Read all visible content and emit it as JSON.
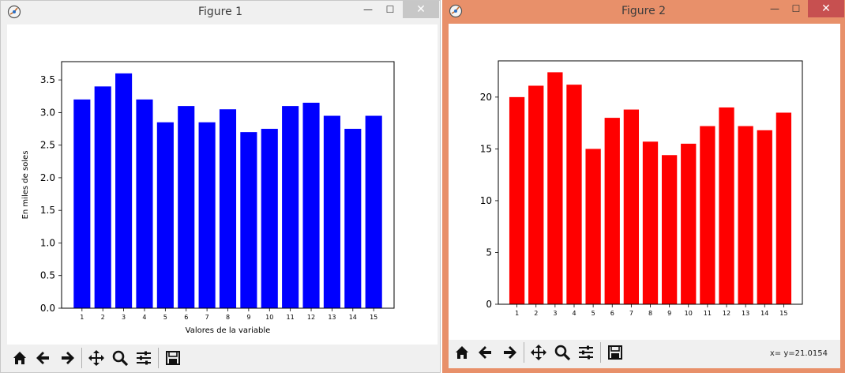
{
  "windows": [
    {
      "title": "Figure 1",
      "coords_text": "",
      "controls": {
        "minimize": "—",
        "maximize": "☐",
        "close": "✕"
      },
      "toolbar": [
        "home-icon",
        "back-icon",
        "forward-icon",
        "pan-icon",
        "zoom-icon",
        "configure-icon",
        "save-icon"
      ]
    },
    {
      "title": "Figure 2",
      "coords_text": "x= y=21.0154",
      "controls": {
        "minimize": "—",
        "maximize": "☐",
        "close": "✕"
      },
      "toolbar": [
        "home-icon",
        "back-icon",
        "forward-icon",
        "pan-icon",
        "zoom-icon",
        "configure-icon",
        "save-icon"
      ]
    }
  ],
  "chart_data": [
    {
      "type": "bar",
      "color": "#0000ff",
      "categories": [
        "1",
        "2",
        "3",
        "4",
        "5",
        "6",
        "7",
        "8",
        "9",
        "10",
        "11",
        "12",
        "13",
        "14",
        "15"
      ],
      "values": [
        3.2,
        3.4,
        3.6,
        3.2,
        2.85,
        3.1,
        2.85,
        3.05,
        2.7,
        2.75,
        3.1,
        3.15,
        2.95,
        2.75,
        2.95
      ],
      "ylim": [
        0,
        3.78
      ],
      "yticks": [
        "0.0",
        "0.5",
        "1.0",
        "1.5",
        "2.0",
        "2.5",
        "3.0",
        "3.5"
      ],
      "xlabel": "Valores de la variable",
      "ylabel": "En miles de soles"
    },
    {
      "type": "bar",
      "color": "#ff0000",
      "categories": [
        "1",
        "2",
        "3",
        "4",
        "5",
        "6",
        "7",
        "8",
        "9",
        "10",
        "11",
        "12",
        "13",
        "14",
        "15"
      ],
      "values": [
        20.0,
        21.1,
        22.4,
        21.2,
        15.0,
        18.0,
        18.8,
        15.7,
        14.4,
        15.5,
        17.2,
        19.0,
        17.2,
        16.8,
        18.5
      ],
      "ylim": [
        0,
        23.5
      ],
      "yticks": [
        "0",
        "5",
        "10",
        "15",
        "20"
      ],
      "xlabel": "",
      "ylabel": ""
    }
  ]
}
